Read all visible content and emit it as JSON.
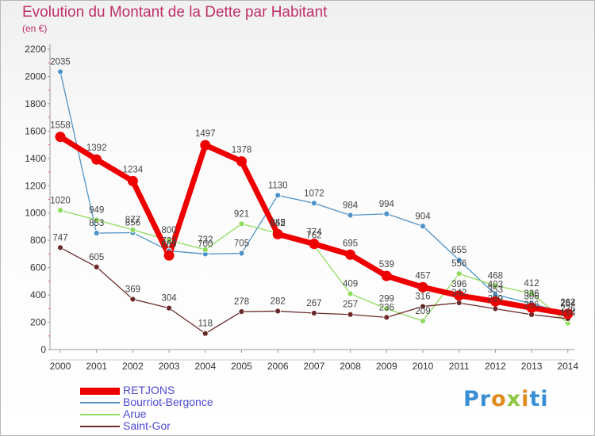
{
  "header": {
    "title": "Evolution du Montant de la Dette par Habitant",
    "unit": "(en €)"
  },
  "brand": {
    "parts": [
      "Pr",
      "o",
      "x",
      "i",
      "ti"
    ]
  },
  "chart_data": {
    "type": "line",
    "title": "Evolution du Montant de la Dette par Habitant",
    "subtitle": "(en €)",
    "xlabel": "",
    "ylabel": "",
    "x": [
      "2000",
      "2001",
      "2002",
      "2003",
      "2004",
      "2005",
      "2006",
      "2007",
      "2008",
      "2009",
      "2010",
      "2011",
      "2012",
      "2013",
      "2014"
    ],
    "ylim": [
      0,
      2200
    ],
    "yticks": [
      0,
      200,
      400,
      600,
      800,
      1000,
      1200,
      1400,
      1600,
      1800,
      2000,
      2200
    ],
    "grid": false,
    "legend_position": "bottom-left",
    "series": [
      {
        "name": "Bourriot-Bergonce",
        "color": "#4f93c8",
        "values": [
          2035,
          853,
          856,
          723,
          700,
          705,
          1130,
          1072,
          984,
          994,
          904,
          655,
          403,
          336,
          264
        ]
      },
      {
        "name": "Arue",
        "color": "#8fdc5c",
        "values": [
          1020,
          949,
          877,
          800,
          732,
          921,
          852,
          762,
          409,
          299,
          209,
          556,
          468,
          412,
          194
        ]
      },
      {
        "name": "Saint-Gor",
        "color": "#6b2a2a",
        "values": [
          747,
          605,
          369,
          304,
          118,
          278,
          282,
          267,
          257,
          236,
          316,
          342,
          299,
          256,
          226
        ]
      },
      {
        "name": "RETJONS",
        "color": "#ee0000",
        "values": [
          1558,
          1392,
          1234,
          689,
          1497,
          1378,
          845,
          774,
          695,
          539,
          457,
          396,
          353,
          306,
          262
        ]
      }
    ]
  }
}
